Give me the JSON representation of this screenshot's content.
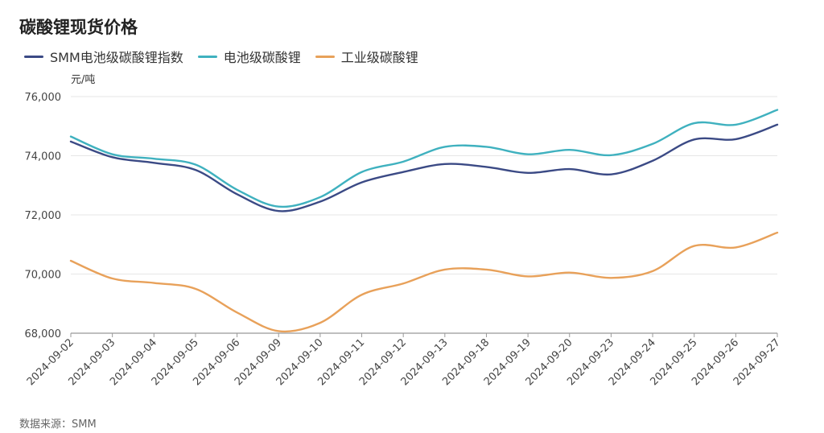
{
  "title": "碳酸锂现货价格",
  "unit": "元/吨",
  "source": "数据来源：SMM",
  "chart_data": {
    "type": "line",
    "title": "碳酸锂现货价格",
    "ylabel": "元/吨",
    "ylim": [
      68000,
      76000
    ],
    "yticks": [
      68000,
      70000,
      72000,
      74000,
      76000
    ],
    "ytick_labels": [
      "68,000",
      "70,000",
      "72,000",
      "74,000",
      "76,000"
    ],
    "categories": [
      "2024-09-02",
      "2024-09-03",
      "2024-09-04",
      "2024-09-05",
      "2024-09-06",
      "2024-09-09",
      "2024-09-10",
      "2024-09-11",
      "2024-09-12",
      "2024-09-13",
      "2024-09-18",
      "2024-09-19",
      "2024-09-20",
      "2024-09-23",
      "2024-09-24",
      "2024-09-25",
      "2024-09-26",
      "2024-09-27"
    ],
    "legend_position": "top-left",
    "series": [
      {
        "name": "SMM电池级碳酸锂指数",
        "color": "#3b4a85",
        "values": [
          74480,
          73950,
          73760,
          73520,
          72700,
          72130,
          72450,
          73100,
          73450,
          73720,
          73620,
          73420,
          73550,
          73370,
          73830,
          74550,
          74560,
          75050
        ]
      },
      {
        "name": "电池级碳酸锂",
        "color": "#3fb1bf",
        "values": [
          74650,
          74050,
          73900,
          73700,
          72850,
          72280,
          72600,
          73450,
          73800,
          74300,
          74300,
          74050,
          74200,
          74020,
          74400,
          75100,
          75050,
          75550
        ]
      },
      {
        "name": "工业级碳酸锂",
        "color": "#e8a15a",
        "values": [
          70450,
          69850,
          69700,
          69500,
          68700,
          68070,
          68350,
          69300,
          69680,
          70150,
          70150,
          69920,
          70050,
          69870,
          70100,
          70950,
          70900,
          71400
        ]
      }
    ]
  }
}
